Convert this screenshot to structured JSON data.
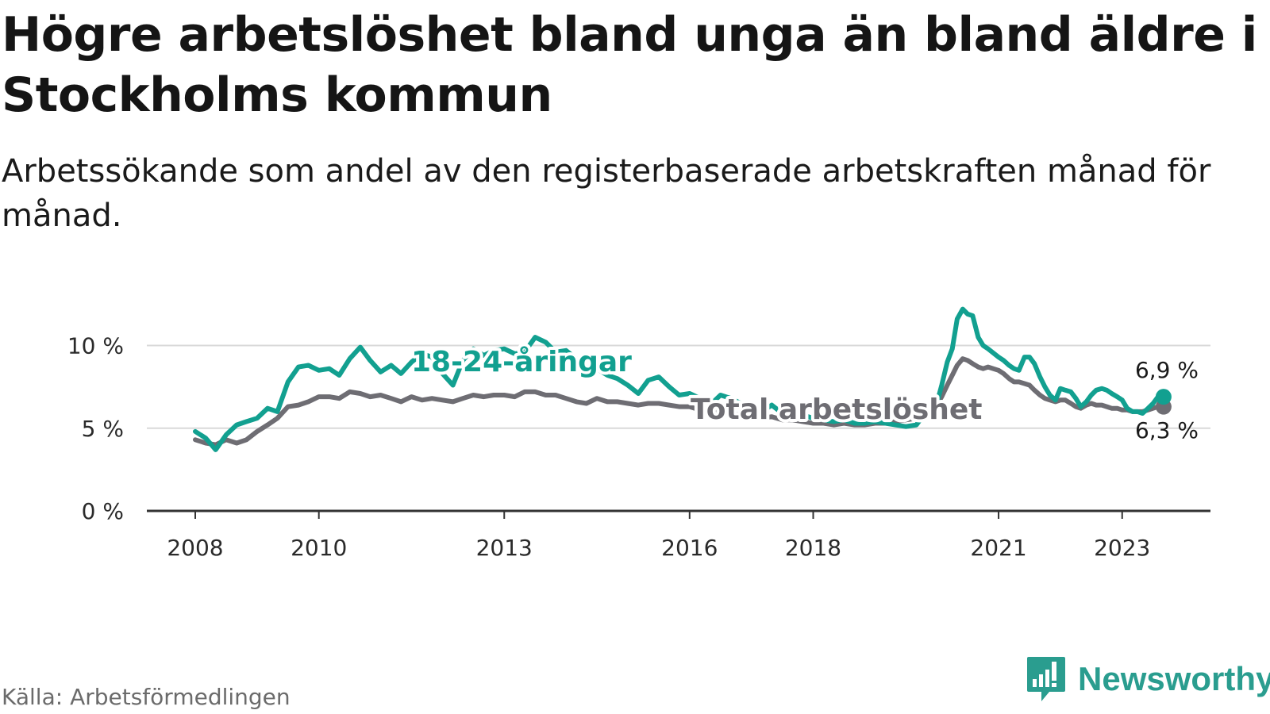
{
  "title": "Högre arbetslöshet bland unga än bland äldre i Stockholms kommun",
  "subtitle": "Arbetssökande som andel av den registerbaserade arbetskraften månad för månad.",
  "source": "Källa: Arbetsförmedlingen",
  "logo_text": "Newsworthy",
  "colors": {
    "youth": "#12a090",
    "total": "#6e6d73",
    "grid": "#d9d9d9",
    "axis": "#333333"
  },
  "chart_data": {
    "type": "line",
    "title": "Högre arbetslöshet bland unga än bland äldre i Stockholms kommun",
    "subtitle": "Arbetssökande som andel av den registerbaserade arbetskraften månad för månad.",
    "xlabel": "",
    "ylabel": "",
    "xlim": [
      2008.0,
      2023.75
    ],
    "ylim": [
      0,
      12
    ],
    "grid": true,
    "x_ticks": [
      {
        "value": 2008,
        "label": "2008"
      },
      {
        "value": 2010,
        "label": "2010"
      },
      {
        "value": 2013,
        "label": "2013"
      },
      {
        "value": 2016,
        "label": "2016"
      },
      {
        "value": 2018,
        "label": "2018"
      },
      {
        "value": 2021,
        "label": "2021"
      },
      {
        "value": 2023,
        "label": "2023"
      }
    ],
    "y_ticks": [
      {
        "value": 0,
        "label": "0 %"
      },
      {
        "value": 5,
        "label": "5 %"
      },
      {
        "value": 10,
        "label": "10 %"
      }
    ],
    "series": [
      {
        "name": "18-24-åringar",
        "label": "18-24-åringar",
        "color": "#12a090",
        "end_label": "6,9 %",
        "points": [
          [
            2008.0,
            4.8
          ],
          [
            2008.17,
            4.4
          ],
          [
            2008.33,
            3.7
          ],
          [
            2008.5,
            4.6
          ],
          [
            2008.67,
            5.2
          ],
          [
            2008.83,
            5.4
          ],
          [
            2009.0,
            5.6
          ],
          [
            2009.17,
            6.2
          ],
          [
            2009.33,
            6.0
          ],
          [
            2009.5,
            7.8
          ],
          [
            2009.67,
            8.7
          ],
          [
            2009.83,
            8.8
          ],
          [
            2010.0,
            8.5
          ],
          [
            2010.17,
            8.6
          ],
          [
            2010.33,
            8.2
          ],
          [
            2010.5,
            9.2
          ],
          [
            2010.67,
            9.9
          ],
          [
            2010.83,
            9.1
          ],
          [
            2011.0,
            8.4
          ],
          [
            2011.17,
            8.8
          ],
          [
            2011.33,
            8.3
          ],
          [
            2011.5,
            9.0
          ],
          [
            2011.67,
            9.5
          ],
          [
            2011.83,
            9.3
          ],
          [
            2012.0,
            8.3
          ],
          [
            2012.17,
            7.6
          ],
          [
            2012.33,
            9.1
          ],
          [
            2012.5,
            9.8
          ],
          [
            2012.67,
            9.4
          ],
          [
            2012.83,
            9.7
          ],
          [
            2013.0,
            9.8
          ],
          [
            2013.17,
            9.5
          ],
          [
            2013.33,
            9.6
          ],
          [
            2013.5,
            10.5
          ],
          [
            2013.67,
            10.2
          ],
          [
            2013.83,
            9.6
          ],
          [
            2014.0,
            9.7
          ],
          [
            2014.17,
            9.2
          ],
          [
            2014.33,
            8.6
          ],
          [
            2014.5,
            8.6
          ],
          [
            2014.67,
            8.2
          ],
          [
            2014.83,
            8.0
          ],
          [
            2015.0,
            7.6
          ],
          [
            2015.17,
            7.1
          ],
          [
            2015.33,
            7.9
          ],
          [
            2015.5,
            8.1
          ],
          [
            2015.67,
            7.5
          ],
          [
            2015.83,
            7.0
          ],
          [
            2016.0,
            7.1
          ],
          [
            2016.17,
            6.8
          ],
          [
            2016.33,
            6.4
          ],
          [
            2016.5,
            7.0
          ],
          [
            2016.67,
            6.8
          ],
          [
            2016.83,
            6.5
          ],
          [
            2017.0,
            6.2
          ],
          [
            2017.17,
            6.0
          ],
          [
            2017.33,
            6.4
          ],
          [
            2017.5,
            5.9
          ],
          [
            2017.67,
            5.8
          ],
          [
            2017.83,
            5.8
          ],
          [
            2018.0,
            5.6
          ],
          [
            2018.17,
            5.5
          ],
          [
            2018.33,
            5.4
          ],
          [
            2018.5,
            5.5
          ],
          [
            2018.67,
            5.3
          ],
          [
            2018.83,
            5.3
          ],
          [
            2019.0,
            5.4
          ],
          [
            2019.17,
            5.3
          ],
          [
            2019.33,
            5.2
          ],
          [
            2019.5,
            5.1
          ],
          [
            2019.67,
            5.2
          ],
          [
            2019.83,
            6.0
          ],
          [
            2020.0,
            6.5
          ],
          [
            2020.08,
            7.6
          ],
          [
            2020.17,
            9.0
          ],
          [
            2020.25,
            9.8
          ],
          [
            2020.33,
            11.6
          ],
          [
            2020.42,
            12.2
          ],
          [
            2020.5,
            11.9
          ],
          [
            2020.58,
            11.8
          ],
          [
            2020.67,
            10.5
          ],
          [
            2020.75,
            10.0
          ],
          [
            2020.83,
            9.8
          ],
          [
            2021.0,
            9.3
          ],
          [
            2021.08,
            9.1
          ],
          [
            2021.17,
            8.8
          ],
          [
            2021.25,
            8.6
          ],
          [
            2021.33,
            8.5
          ],
          [
            2021.42,
            9.3
          ],
          [
            2021.5,
            9.3
          ],
          [
            2021.58,
            8.9
          ],
          [
            2021.67,
            8.1
          ],
          [
            2021.75,
            7.5
          ],
          [
            2021.83,
            7.0
          ],
          [
            2021.92,
            6.7
          ],
          [
            2022.0,
            7.4
          ],
          [
            2022.08,
            7.3
          ],
          [
            2022.17,
            7.2
          ],
          [
            2022.25,
            6.8
          ],
          [
            2022.33,
            6.3
          ],
          [
            2022.42,
            6.6
          ],
          [
            2022.5,
            7.0
          ],
          [
            2022.58,
            7.3
          ],
          [
            2022.67,
            7.4
          ],
          [
            2022.75,
            7.3
          ],
          [
            2022.83,
            7.1
          ],
          [
            2022.92,
            6.9
          ],
          [
            2023.0,
            6.7
          ],
          [
            2023.08,
            6.2
          ],
          [
            2023.17,
            6.0
          ],
          [
            2023.25,
            6.0
          ],
          [
            2023.33,
            5.9
          ],
          [
            2023.42,
            6.2
          ],
          [
            2023.5,
            6.5
          ],
          [
            2023.58,
            6.9
          ],
          [
            2023.67,
            6.9
          ]
        ]
      },
      {
        "name": "Total arbetslöshet",
        "label": "Total arbetslöshet",
        "color": "#6e6d73",
        "end_label": "6,3 %",
        "points": [
          [
            2008.0,
            4.3
          ],
          [
            2008.17,
            4.1
          ],
          [
            2008.33,
            4.0
          ],
          [
            2008.5,
            4.3
          ],
          [
            2008.67,
            4.1
          ],
          [
            2008.83,
            4.3
          ],
          [
            2009.0,
            4.8
          ],
          [
            2009.17,
            5.2
          ],
          [
            2009.33,
            5.6
          ],
          [
            2009.5,
            6.3
          ],
          [
            2009.67,
            6.4
          ],
          [
            2009.83,
            6.6
          ],
          [
            2010.0,
            6.9
          ],
          [
            2010.17,
            6.9
          ],
          [
            2010.33,
            6.8
          ],
          [
            2010.5,
            7.2
          ],
          [
            2010.67,
            7.1
          ],
          [
            2010.83,
            6.9
          ],
          [
            2011.0,
            7.0
          ],
          [
            2011.17,
            6.8
          ],
          [
            2011.33,
            6.6
          ],
          [
            2011.5,
            6.9
          ],
          [
            2011.67,
            6.7
          ],
          [
            2011.83,
            6.8
          ],
          [
            2012.0,
            6.7
          ],
          [
            2012.17,
            6.6
          ],
          [
            2012.33,
            6.8
          ],
          [
            2012.5,
            7.0
          ],
          [
            2012.67,
            6.9
          ],
          [
            2012.83,
            7.0
          ],
          [
            2013.0,
            7.0
          ],
          [
            2013.17,
            6.9
          ],
          [
            2013.33,
            7.2
          ],
          [
            2013.5,
            7.2
          ],
          [
            2013.67,
            7.0
          ],
          [
            2013.83,
            7.0
          ],
          [
            2014.0,
            6.8
          ],
          [
            2014.17,
            6.6
          ],
          [
            2014.33,
            6.5
          ],
          [
            2014.5,
            6.8
          ],
          [
            2014.67,
            6.6
          ],
          [
            2014.83,
            6.6
          ],
          [
            2015.0,
            6.5
          ],
          [
            2015.17,
            6.4
          ],
          [
            2015.33,
            6.5
          ],
          [
            2015.5,
            6.5
          ],
          [
            2015.67,
            6.4
          ],
          [
            2015.83,
            6.3
          ],
          [
            2016.0,
            6.3
          ],
          [
            2016.17,
            6.1
          ],
          [
            2016.33,
            6.0
          ],
          [
            2016.5,
            6.1
          ],
          [
            2016.67,
            5.9
          ],
          [
            2016.83,
            5.8
          ],
          [
            2017.0,
            5.7
          ],
          [
            2017.17,
            5.6
          ],
          [
            2017.33,
            5.7
          ],
          [
            2017.5,
            5.5
          ],
          [
            2017.67,
            5.5
          ],
          [
            2017.83,
            5.4
          ],
          [
            2018.0,
            5.3
          ],
          [
            2018.17,
            5.3
          ],
          [
            2018.33,
            5.2
          ],
          [
            2018.5,
            5.3
          ],
          [
            2018.67,
            5.2
          ],
          [
            2018.83,
            5.2
          ],
          [
            2019.0,
            5.3
          ],
          [
            2019.17,
            5.3
          ],
          [
            2019.33,
            5.4
          ],
          [
            2019.5,
            5.5
          ],
          [
            2019.67,
            5.6
          ],
          [
            2019.83,
            6.0
          ],
          [
            2020.0,
            6.4
          ],
          [
            2020.08,
            6.9
          ],
          [
            2020.17,
            7.6
          ],
          [
            2020.25,
            8.2
          ],
          [
            2020.33,
            8.8
          ],
          [
            2020.42,
            9.2
          ],
          [
            2020.5,
            9.1
          ],
          [
            2020.58,
            8.9
          ],
          [
            2020.67,
            8.7
          ],
          [
            2020.75,
            8.6
          ],
          [
            2020.83,
            8.7
          ],
          [
            2021.0,
            8.5
          ],
          [
            2021.08,
            8.3
          ],
          [
            2021.17,
            8.0
          ],
          [
            2021.25,
            7.8
          ],
          [
            2021.33,
            7.8
          ],
          [
            2021.42,
            7.7
          ],
          [
            2021.5,
            7.6
          ],
          [
            2021.58,
            7.3
          ],
          [
            2021.67,
            7.0
          ],
          [
            2021.75,
            6.8
          ],
          [
            2021.83,
            6.7
          ],
          [
            2021.92,
            6.6
          ],
          [
            2022.0,
            6.7
          ],
          [
            2022.08,
            6.7
          ],
          [
            2022.17,
            6.5
          ],
          [
            2022.25,
            6.3
          ],
          [
            2022.33,
            6.2
          ],
          [
            2022.42,
            6.4
          ],
          [
            2022.5,
            6.5
          ],
          [
            2022.58,
            6.4
          ],
          [
            2022.67,
            6.4
          ],
          [
            2022.75,
            6.3
          ],
          [
            2022.83,
            6.2
          ],
          [
            2022.92,
            6.2
          ],
          [
            2023.0,
            6.1
          ],
          [
            2023.08,
            6.1
          ],
          [
            2023.17,
            6.0
          ],
          [
            2023.25,
            6.0
          ],
          [
            2023.33,
            6.0
          ],
          [
            2023.42,
            6.1
          ],
          [
            2023.5,
            6.2
          ],
          [
            2023.58,
            6.3
          ],
          [
            2023.67,
            6.3
          ]
        ]
      }
    ]
  }
}
